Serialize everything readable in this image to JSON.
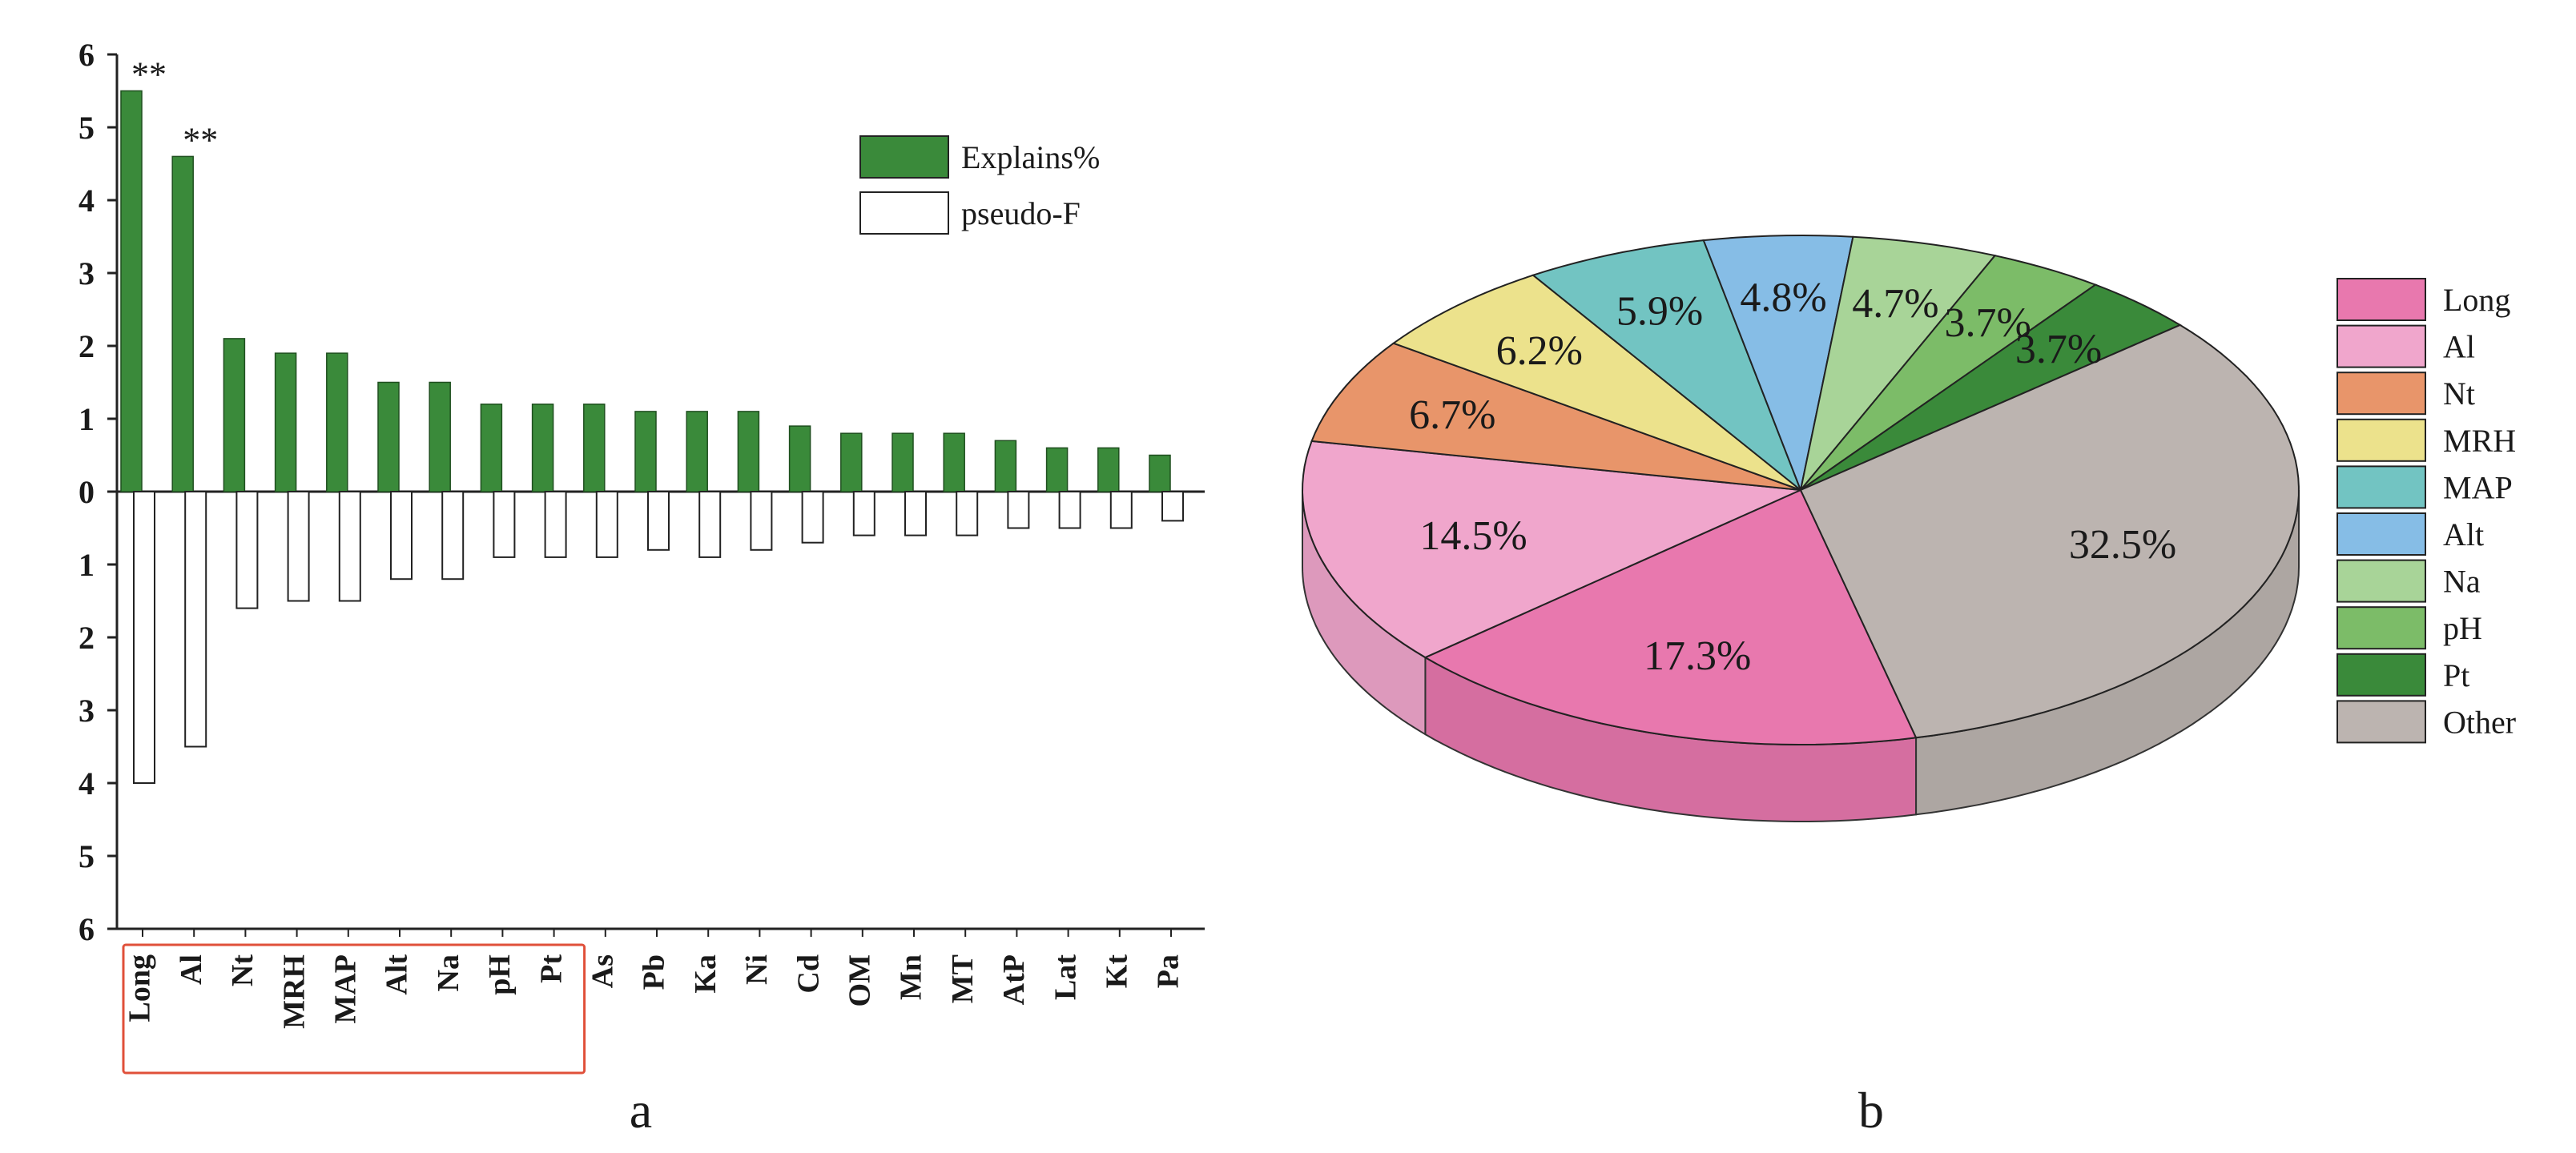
{
  "chart_data": [
    {
      "type": "bar",
      "panel_label": "a",
      "categories": [
        "Long",
        "Al",
        "Nt",
        "MRH",
        "MAP",
        "Alt",
        "Na",
        "pH",
        "Pt",
        "As",
        "Pb",
        "Ka",
        "Ni",
        "Cd",
        "OM",
        "Mn",
        "MT",
        "AtP",
        "Lat",
        "Kt",
        "Pa"
      ],
      "series": [
        {
          "name": "Explains%",
          "color": "#3a8a3a",
          "direction": "up",
          "values": [
            5.5,
            4.6,
            2.1,
            1.9,
            1.9,
            1.5,
            1.5,
            1.2,
            1.2,
            1.2,
            1.1,
            1.1,
            1.1,
            0.9,
            0.8,
            0.8,
            0.8,
            0.7,
            0.6,
            0.6,
            0.5
          ]
        },
        {
          "name": "pseudo-F",
          "color": "#ffffff",
          "direction": "down",
          "values": [
            4.0,
            3.5,
            1.6,
            1.5,
            1.5,
            1.2,
            1.2,
            0.9,
            0.9,
            0.9,
            0.8,
            0.9,
            0.8,
            0.7,
            0.6,
            0.6,
            0.6,
            0.5,
            0.5,
            0.5,
            0.4
          ]
        }
      ],
      "y_ticks_up": [
        "0",
        "1",
        "2",
        "3",
        "4",
        "5",
        "6"
      ],
      "y_ticks_down": [
        "1",
        "2",
        "3",
        "4",
        "5",
        "6"
      ],
      "ylim": [
        -6,
        6
      ],
      "annotations": [
        {
          "category": "Long",
          "text": "**"
        },
        {
          "category": "Al",
          "text": "**"
        }
      ],
      "highlight": {
        "from": "Long",
        "to": "Pt",
        "color": "#e0503a"
      },
      "legend_position": "top-right"
    },
    {
      "type": "pie",
      "panel_label": "b",
      "slices": [
        {
          "label": "Long",
          "value": 17.3,
          "text": "17.3%",
          "color": "#e878ae"
        },
        {
          "label": "Al",
          "value": 14.5,
          "text": "14.5%",
          "color": "#f0a6cc"
        },
        {
          "label": "Nt",
          "value": 6.7,
          "text": "6.7%",
          "color": "#e8956a"
        },
        {
          "label": "MRH",
          "value": 6.2,
          "text": "6.2%",
          "color": "#ece28c"
        },
        {
          "label": "MAP",
          "value": 5.9,
          "text": "5.9%",
          "color": "#72c4c2"
        },
        {
          "label": "Alt",
          "value": 4.8,
          "text": "4.8%",
          "color": "#86bde6"
        },
        {
          "label": "Na",
          "value": 4.7,
          "text": "4.7%",
          "color": "#a8d498"
        },
        {
          "label": "pH",
          "value": 3.7,
          "text": "3.7%",
          "color": "#7cbc68"
        },
        {
          "label": "Pt",
          "value": 3.7,
          "text": "3.7%",
          "color": "#3a8a3a"
        },
        {
          "label": "Other",
          "value": 32.5,
          "text": "32.5%",
          "color": "#bcb4b0"
        }
      ],
      "legend_position": "right"
    }
  ]
}
